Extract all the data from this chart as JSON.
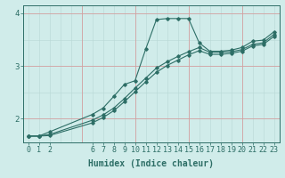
{
  "bg_color": "#d0ecea",
  "line_color": "#2d6e66",
  "grid_color_teal": "#b8d8d5",
  "grid_color_red": "#d4a0a0",
  "xlabel": "Humidex (Indice chaleur)",
  "xlabel_fontsize": 7,
  "tick_fontsize": 6,
  "yticks": [
    2,
    3,
    4
  ],
  "ylim": [
    1.55,
    4.15
  ],
  "xlim": [
    -0.5,
    23.5
  ],
  "xtick_positions": [
    0,
    1,
    2,
    6,
    7,
    8,
    9,
    10,
    11,
    12,
    13,
    14,
    15,
    16,
    17,
    18,
    19,
    20,
    21,
    22,
    23
  ],
  "xtick_labels": [
    "0",
    "1",
    "2",
    "6",
    "7",
    "8",
    "9",
    "10",
    "11",
    "12",
    "13",
    "14",
    "15",
    "16",
    "17",
    "18",
    "19",
    "20",
    "21",
    "22",
    "23"
  ],
  "curve1_x": [
    0,
    1,
    2,
    6,
    7,
    8,
    9,
    10,
    11,
    12,
    13,
    14,
    15,
    16,
    17,
    18,
    19,
    20,
    21,
    22,
    23
  ],
  "curve1_y": [
    1.67,
    1.67,
    1.75,
    2.08,
    2.2,
    2.42,
    2.65,
    2.72,
    3.32,
    3.88,
    3.9,
    3.9,
    3.9,
    3.44,
    3.28,
    3.28,
    3.3,
    3.35,
    3.47,
    3.49,
    3.65
  ],
  "curve2_x": [
    0,
    1,
    2,
    6,
    7,
    8,
    9,
    10,
    11,
    12,
    13,
    14,
    15,
    16,
    17,
    18,
    19,
    20,
    21,
    22,
    23
  ],
  "curve2_y": [
    1.67,
    1.67,
    1.7,
    1.97,
    2.07,
    2.2,
    2.38,
    2.58,
    2.77,
    2.96,
    3.08,
    3.18,
    3.27,
    3.35,
    3.26,
    3.26,
    3.27,
    3.31,
    3.41,
    3.44,
    3.6
  ],
  "curve3_x": [
    0,
    1,
    2,
    6,
    7,
    8,
    9,
    10,
    11,
    12,
    13,
    14,
    15,
    16,
    17,
    18,
    19,
    20,
    21,
    22,
    23
  ],
  "curve3_y": [
    1.67,
    1.67,
    1.68,
    1.92,
    2.02,
    2.15,
    2.32,
    2.51,
    2.7,
    2.88,
    3.01,
    3.11,
    3.21,
    3.29,
    3.22,
    3.22,
    3.24,
    3.28,
    3.38,
    3.41,
    3.56
  ]
}
